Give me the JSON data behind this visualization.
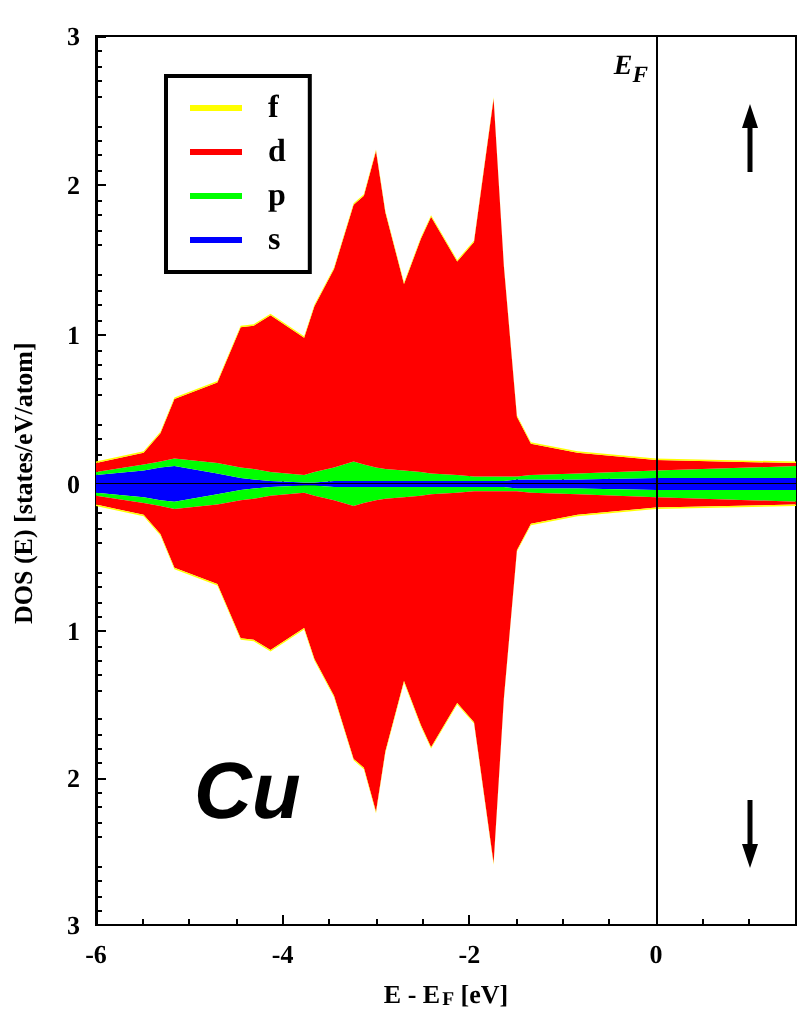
{
  "chart_data": [
    {
      "type": "area",
      "stacked": true,
      "ylabel": "DOS (E) [states/eV/atom]",
      "xlim": [
        -6,
        1.5
      ],
      "xticks": [
        -6,
        -4,
        -2,
        0
      ],
      "ylim": [
        0,
        3
      ],
      "yticks": [
        0,
        1,
        2,
        3
      ],
      "tick_labels": "y",
      "grid": false,
      "legend": "top left",
      "ref_lines": [
        {
          "axis": "x",
          "value": 0,
          "label": "E$_{F}$",
          "color": "#000000"
        }
      ],
      "x": [
        -6,
        -5.49,
        -5.31,
        -5.16,
        -4.7,
        -4.45,
        -4.31,
        -4.13,
        -3.77,
        -3.66,
        -3.45,
        -3.24,
        -3.13,
        -3,
        -2.9,
        -2.7,
        -2.52,
        -2.41,
        -2.13,
        -1.95,
        -1.74,
        -1.63,
        -1.49,
        -1.34,
        -0.84,
        0,
        1.5
      ],
      "series": [
        {
          "name": "s",
          "color": "#0000ff",
          "values": [
            0.06,
            0.09,
            0.11,
            0.12,
            0.07,
            0.04,
            0.03,
            0.02,
            0.01,
            0.01,
            0.02,
            0.02,
            0.02,
            0.02,
            0.02,
            0.02,
            0.02,
            0.02,
            0.02,
            0.02,
            0.02,
            0.02,
            0.03,
            0.03,
            0.03,
            0.04,
            0.04
          ]
        },
        {
          "name": "p",
          "color": "#00ff00",
          "values": [
            0.02,
            0.04,
            0.04,
            0.05,
            0.07,
            0.07,
            0.07,
            0.06,
            0.05,
            0.07,
            0.09,
            0.13,
            0.11,
            0.09,
            0.08,
            0.07,
            0.06,
            0.05,
            0.04,
            0.03,
            0.03,
            0.03,
            0.02,
            0.03,
            0.04,
            0.05,
            0.08
          ]
        },
        {
          "name": "d",
          "color": "#ff0000",
          "values": [
            0.06,
            0.08,
            0.19,
            0.4,
            0.54,
            0.94,
            0.96,
            1.05,
            0.92,
            1.11,
            1.33,
            1.72,
            1.8,
            2.12,
            1.72,
            1.25,
            1.56,
            1.72,
            1.43,
            1.57,
            2.53,
            1.41,
            0.4,
            0.21,
            0.14,
            0.07,
            0.02
          ]
        },
        {
          "name": "f",
          "color": "#ffff00",
          "values": [
            0.01,
            0.01,
            0.01,
            0.01,
            0.01,
            0.01,
            0.01,
            0.01,
            0.01,
            0.01,
            0.01,
            0.01,
            0.01,
            0.01,
            0.01,
            0.01,
            0.01,
            0.01,
            0.01,
            0.01,
            0.01,
            0.01,
            0.01,
            0.01,
            0.01,
            0.01,
            0.01
          ]
        }
      ]
    },
    {
      "type": "area",
      "stacked": true,
      "xlabel": "E - E$_{F}$ [eV]",
      "xlim": [
        -6,
        1.5
      ],
      "xticks": [
        -6,
        -4,
        -2,
        0
      ],
      "ylim": [
        -3,
        0
      ],
      "yticks": [
        {
          "value": -3,
          "label": "3"
        },
        {
          "value": -2,
          "label": "2"
        },
        {
          "value": -1,
          "label": "1"
        },
        {
          "value": 0,
          "label": null
        }
      ],
      "grid": false,
      "annotations": [
        "Cu"
      ],
      "ref_lines": [
        {
          "axis": "x",
          "value": 0,
          "color": "#000000"
        }
      ],
      "x": [
        -6,
        -5.49,
        -5.31,
        -5.16,
        -4.7,
        -4.45,
        -4.31,
        -4.13,
        -3.77,
        -3.66,
        -3.45,
        -3.24,
        -3.13,
        -3,
        -2.9,
        -2.7,
        -2.52,
        -2.41,
        -2.13,
        -1.95,
        -1.74,
        -1.63,
        -1.49,
        -1.34,
        -0.84,
        0,
        1.5
      ],
      "series": [
        {
          "color": "#0000ff",
          "values": [
            -0.06,
            -0.09,
            -0.11,
            -0.12,
            -0.07,
            -0.04,
            -0.03,
            -0.02,
            -0.01,
            -0.01,
            -0.02,
            -0.02,
            -0.02,
            -0.02,
            -0.02,
            -0.02,
            -0.02,
            -0.02,
            -0.02,
            -0.02,
            -0.02,
            -0.02,
            -0.03,
            -0.03,
            -0.03,
            -0.04,
            -0.04
          ]
        },
        {
          "color": "#00ff00",
          "values": [
            -0.02,
            -0.04,
            -0.04,
            -0.05,
            -0.07,
            -0.07,
            -0.07,
            -0.06,
            -0.05,
            -0.07,
            -0.09,
            -0.13,
            -0.11,
            -0.09,
            -0.08,
            -0.07,
            -0.06,
            -0.05,
            -0.04,
            -0.03,
            -0.03,
            -0.03,
            -0.02,
            -0.03,
            -0.04,
            -0.05,
            -0.08
          ]
        },
        {
          "color": "#ff0000",
          "values": [
            -0.06,
            -0.08,
            -0.19,
            -0.4,
            -0.54,
            -0.94,
            -0.96,
            -1.05,
            -0.92,
            -1.11,
            -1.33,
            -1.72,
            -1.8,
            -2.12,
            -1.72,
            -1.25,
            -1.56,
            -1.72,
            -1.43,
            -1.57,
            -2.53,
            -1.41,
            -0.4,
            -0.21,
            -0.14,
            -0.07,
            -0.02
          ]
        },
        {
          "color": "#ffff00",
          "values": [
            -0.01,
            -0.01,
            -0.01,
            -0.01,
            -0.01,
            -0.01,
            -0.01,
            -0.01,
            -0.01,
            -0.01,
            -0.01,
            -0.01,
            -0.01,
            -0.01,
            -0.01,
            -0.01,
            -0.01,
            -0.01,
            -0.01,
            -0.01,
            -0.01,
            -0.01,
            -0.01,
            -0.01,
            -0.01,
            -0.01,
            -0.01
          ]
        }
      ]
    }
  ]
}
